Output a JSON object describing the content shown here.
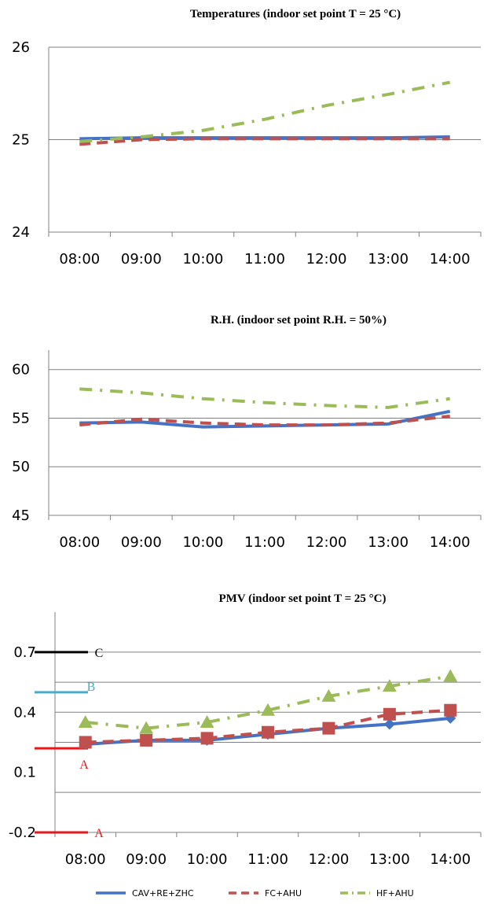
{
  "chart_data": [
    {
      "type": "line",
      "title": "Temperatures (indoor set point T = 25 °C)",
      "xlabel": "",
      "ylabel": "",
      "categories": [
        "08:00",
        "09:00",
        "10:00",
        "11:00",
        "12:00",
        "13:00",
        "14:00"
      ],
      "ylim": [
        24,
        26
      ],
      "yticks": [
        "24",
        "25",
        "26"
      ],
      "grid": true,
      "series": [
        {
          "name": "CAV+RE+ZHC",
          "values": [
            25.01,
            25.02,
            25.02,
            25.02,
            25.02,
            25.02,
            25.03
          ]
        },
        {
          "name": "FC+AHU",
          "values": [
            24.95,
            25.0,
            25.01,
            25.01,
            25.01,
            25.01,
            25.01
          ]
        },
        {
          "name": "HF+AHU",
          "values": [
            24.98,
            25.03,
            25.1,
            25.22,
            25.37,
            25.49,
            25.62
          ]
        }
      ]
    },
    {
      "type": "line",
      "title": "R.H. (indoor set point R.H. = 50%)",
      "xlabel": "",
      "ylabel": "",
      "categories": [
        "08:00",
        "09:00",
        "10:00",
        "11:00",
        "12:00",
        "13:00",
        "14:00"
      ],
      "ylim": [
        45,
        62
      ],
      "yticks": [
        "45",
        "50",
        "55",
        "60"
      ],
      "grid": true,
      "series": [
        {
          "name": "CAV+RE+ZHC",
          "values": [
            54.5,
            54.6,
            54.1,
            54.2,
            54.3,
            54.4,
            55.7
          ]
        },
        {
          "name": "FC+AHU",
          "values": [
            54.3,
            54.9,
            54.5,
            54.3,
            54.3,
            54.5,
            55.2
          ]
        },
        {
          "name": "HF+AHU",
          "values": [
            58.0,
            57.6,
            57.0,
            56.6,
            56.3,
            56.1,
            57.0
          ]
        }
      ]
    },
    {
      "type": "line",
      "title": "PMV (indoor set point T = 25 °C)",
      "xlabel": "",
      "ylabel": "",
      "categories": [
        "08:00",
        "09:00",
        "10:00",
        "11:00",
        "12:00",
        "13:00",
        "14:00"
      ],
      "ylim": [
        -0.2,
        0.9
      ],
      "yticks": [
        "-0.2",
        "0.1",
        "0.4",
        "0.7"
      ],
      "grid": true,
      "series": [
        {
          "name": "CAV+RE+ZHC",
          "values": [
            0.24,
            0.26,
            0.26,
            0.29,
            0.32,
            0.34,
            0.37
          ]
        },
        {
          "name": "FC+AHU",
          "values": [
            0.25,
            0.26,
            0.27,
            0.3,
            0.32,
            0.39,
            0.41
          ]
        },
        {
          "name": "HF+AHU",
          "values": [
            0.35,
            0.32,
            0.35,
            0.41,
            0.48,
            0.53,
            0.58
          ]
        }
      ],
      "annotations": [
        {
          "label": "C",
          "value": 0.7,
          "color": "#000000"
        },
        {
          "label": "B",
          "value": 0.5,
          "color": "#4bacc6"
        },
        {
          "label": "A",
          "value": 0.22,
          "color": "#e31a1c"
        },
        {
          "label": "A",
          "value": -0.2,
          "color": "#e31a1c"
        }
      ]
    }
  ],
  "legend": [
    {
      "label": "CAV+RE+ZHC",
      "color": "#4472c4",
      "style": "solid"
    },
    {
      "label": "FC+AHU",
      "color": "#c0504d",
      "style": "dashed"
    },
    {
      "label": "HF+AHU",
      "color": "#9bbb59",
      "style": "dash-dot"
    }
  ],
  "colors": {
    "series1": "#4472c4",
    "series2": "#c0504d",
    "series3": "#9bbb59",
    "grid": "#808080"
  }
}
